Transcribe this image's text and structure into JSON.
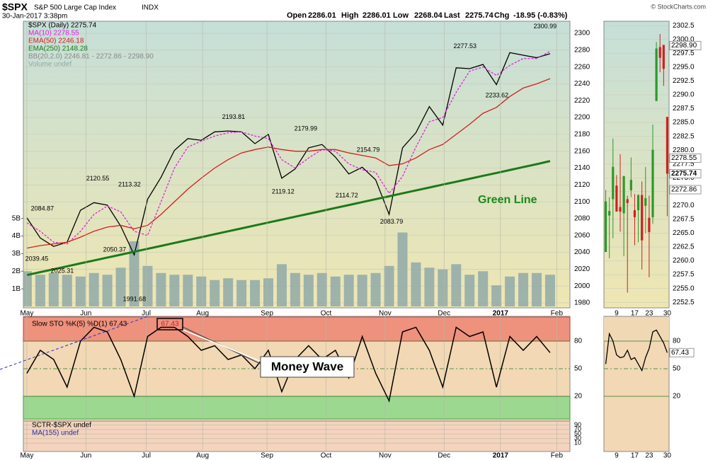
{
  "header": {
    "symbol": "$SPX",
    "name": "S&P 500 Large Cap Index",
    "exchange": "INDX",
    "timestamp": "30-Jan-2017 3:38pm",
    "quote": [
      {
        "label": "Open",
        "value": 2286.01
      },
      {
        "label": "High",
        "value": 2286.01
      },
      {
        "label": "Low",
        "value": 2268.04
      },
      {
        "label": "Last",
        "value": 2275.74
      }
    ],
    "change_label": "Chg",
    "change": "-18.95 (-0.83%)",
    "credit": "© StockCharts.com"
  },
  "chart_data": [
    {
      "type": "line",
      "xlim": [
        -0.26,
        40.48
      ],
      "xticks": [
        {
          "value": 0,
          "label": "May"
        },
        {
          "value": 4.4,
          "label": "Jun"
        },
        {
          "value": 8.9,
          "label": "Jul"
        },
        {
          "value": 13.1,
          "label": "Aug"
        },
        {
          "value": 17.9,
          "label": "Sep"
        },
        {
          "value": 22.3,
          "label": "Oct"
        },
        {
          "value": 26.7,
          "label": "Nov"
        },
        {
          "value": 31.1,
          "label": "Dec"
        },
        {
          "value": 35.3,
          "label": "2017"
        },
        {
          "value": 39.5,
          "label": "Feb"
        }
      ],
      "ylim": [
        1974.1,
        2314.3
      ],
      "yticks": [
        1980,
        2000,
        2020,
        2040,
        2060,
        2080,
        2100,
        2120,
        2140,
        2160,
        2180,
        2200,
        2220,
        2240,
        2260,
        2280,
        2300
      ],
      "y2lim": [
        -80000000,
        16200000000
      ],
      "y2ticks": [
        {
          "value": 1000000000,
          "label": "1B"
        },
        {
          "value": 2000000000,
          "label": "2B"
        },
        {
          "value": 3000000000,
          "label": "3B"
        },
        {
          "value": 4000000000,
          "label": "4B"
        },
        {
          "value": 5000000000,
          "label": "5B"
        }
      ],
      "grid": true,
      "series": [
        {
          "name": "$SPX (Daily) 2275.74",
          "color": "#000000",
          "values": [
            2081,
            2057,
            2047,
            2052,
            2090,
            2099,
            2096,
            2071,
            2037,
            2103,
            2129,
            2161,
            2175,
            2173,
            2183,
            2184,
            2183,
            2169,
            2180,
            2128,
            2139,
            2164,
            2168,
            2153,
            2133,
            2141,
            2126,
            2085,
            2164,
            2182,
            2213,
            2191,
            2259,
            2258,
            2263,
            2239,
            2277,
            2274,
            2271,
            2275.74
          ]
        },
        {
          "name": "MA(10) 2278.55",
          "color": "#e020e0",
          "dash": true,
          "values": [
            2075,
            2065,
            2052,
            2050,
            2065,
            2085,
            2095,
            2088,
            2065,
            2060,
            2100,
            2140,
            2165,
            2172,
            2178,
            2182,
            2183,
            2178,
            2175,
            2150,
            2140,
            2152,
            2162,
            2160,
            2145,
            2138,
            2135,
            2110,
            2130,
            2165,
            2195,
            2200,
            2230,
            2255,
            2260,
            2250,
            2262,
            2270,
            2270,
            2278.55
          ]
        },
        {
          "name": "EMA(50) 2246.18",
          "color": "#d02020",
          "values": [
            2045,
            2048,
            2050,
            2052,
            2058,
            2065,
            2070,
            2072,
            2068,
            2072,
            2085,
            2100,
            2115,
            2128,
            2140,
            2150,
            2158,
            2162,
            2165,
            2162,
            2160,
            2160,
            2162,
            2162,
            2158,
            2155,
            2152,
            2143,
            2145,
            2152,
            2162,
            2168,
            2180,
            2192,
            2205,
            2212,
            2225,
            2235,
            2240,
            2246.18
          ]
        },
        {
          "name": "EMA(250) 2148.28",
          "color": "#1a7a1a",
          "width": 3,
          "values": [
            2013,
            2016.5,
            2019.9,
            2023.4,
            2026.9,
            2030.3,
            2033.8,
            2037.2,
            2040.7,
            2044.2,
            2047.6,
            2051.1,
            2054.6,
            2058,
            2061.5,
            2065,
            2068.4,
            2071.9,
            2075.4,
            2078.8,
            2082.3,
            2085.7,
            2089.2,
            2092.7,
            2096.1,
            2099.6,
            2103.1,
            2106.5,
            2110,
            2113.5,
            2116.9,
            2120.4,
            2123.8,
            2127.3,
            2130.8,
            2134.2,
            2137.7,
            2141.2,
            2144.6,
            2148.28
          ]
        },
        {
          "name": "Volume undef",
          "color": "#8fa9a8",
          "style": "bar",
          "axis": "y2",
          "values": [
            2000000000,
            1800000000,
            1900000000,
            1800000000,
            1700000000,
            1900000000,
            1800000000,
            2200000000,
            3700000000,
            2300000000,
            1900000000,
            1800000000,
            1800000000,
            1700000000,
            1500000000,
            1600000000,
            1500000000,
            1500000000,
            1600000000,
            2400000000,
            1900000000,
            1800000000,
            1900000000,
            1700000000,
            1800000000,
            1800000000,
            1900000000,
            2300000000,
            4200000000,
            2500000000,
            2200000000,
            2100000000,
            2400000000,
            1800000000,
            2000000000,
            1200000000,
            1700000000,
            1900000000,
            1900000000,
            1800000000
          ]
        }
      ],
      "legend_extra": "BB(20,2.0) 2246.81 - 2272.86 - 2298.90",
      "annotations": [
        {
          "x": 1.16,
          "value": 2084.87
        },
        {
          "x": 0.74,
          "value": 2039.45
        },
        {
          "x": 2.64,
          "value": 2025.31
        },
        {
          "x": 5.28,
          "value": 2120.55
        },
        {
          "x": 6.54,
          "value": 2050.37
        },
        {
          "x": 7.65,
          "value": 2113.32
        },
        {
          "x": 8.02,
          "value": 1991.68
        },
        {
          "x": 15.41,
          "value": 2193.81
        },
        {
          "x": 20.79,
          "value": 2179.99
        },
        {
          "x": 19.1,
          "value": 2119.12
        },
        {
          "x": 25.44,
          "value": 2154.79
        },
        {
          "x": 23.85,
          "value": 2114.72
        },
        {
          "x": 27.18,
          "value": 2083.79
        },
        {
          "x": 32.66,
          "value": 2277.53
        },
        {
          "x": 35.04,
          "value": 2233.62
        },
        {
          "x": 38.63,
          "value": 2300.99
        }
      ],
      "trendline_label": "Green Line"
    },
    {
      "type": "line",
      "xlim": [
        -0.26,
        40.48
      ],
      "xticks": [
        {
          "value": 0,
          "label": "May"
        },
        {
          "value": 4.4,
          "label": "Jun"
        },
        {
          "value": 8.9,
          "label": "Jul"
        },
        {
          "value": 13.1,
          "label": "Aug"
        },
        {
          "value": 17.9,
          "label": "Sep"
        },
        {
          "value": 22.3,
          "label": "Oct"
        },
        {
          "value": 26.7,
          "label": "Nov"
        },
        {
          "value": 31.1,
          "label": "Dec"
        },
        {
          "value": 35.3,
          "label": "2017"
        },
        {
          "value": 39.5,
          "label": "Feb"
        }
      ],
      "ylim": [
        -6.9,
        106.9
      ],
      "yticks": [
        20,
        50,
        80
      ],
      "series": [
        {
          "name": "Slow STO %K(5) %D(1) 67.43",
          "color": "#000000",
          "values": [
            45,
            70,
            60,
            30,
            80,
            95,
            90,
            60,
            20,
            85,
            95,
            95,
            85,
            70,
            75,
            60,
            65,
            50,
            70,
            25,
            60,
            75,
            60,
            70,
            40,
            85,
            45,
            15,
            90,
            95,
            70,
            30,
            95,
            85,
            90,
            30,
            85,
            70,
            85,
            67.43
          ]
        }
      ],
      "last_label": {
        "value": 67.43,
        "label": "67.43"
      },
      "callout": "Money Wave"
    },
    {
      "type": "line",
      "xlim": [
        -0.26,
        40.48
      ],
      "xticks": [
        {
          "value": 0,
          "label": "May"
        },
        {
          "value": 4.4,
          "label": "Jun"
        },
        {
          "value": 8.9,
          "label": "Jul"
        },
        {
          "value": 13.1,
          "label": "Aug"
        },
        {
          "value": 17.9,
          "label": "Sep"
        },
        {
          "value": 22.3,
          "label": "Oct"
        },
        {
          "value": 26.7,
          "label": "Nov"
        },
        {
          "value": 31.1,
          "label": "Dec"
        },
        {
          "value": 35.3,
          "label": "2017"
        },
        {
          "value": 39.5,
          "label": "Feb"
        }
      ],
      "ylim": [
        -26.7,
        106.7
      ],
      "yticks": [
        10,
        30,
        50,
        70,
        90
      ],
      "legend": [
        "SCTR-$SPX undef",
        "MA(155) undef"
      ]
    },
    {
      "type": "candlestick",
      "categories": [
        null,
        null,
        null,
        "9",
        null,
        null,
        null,
        null,
        "17",
        null,
        null,
        null,
        "23",
        null,
        null,
        null,
        null,
        "30"
      ],
      "ylim": [
        2251.5,
        2303.3
      ],
      "yticks": [
        2252.5,
        {
          "value": 2255,
          "label": "2255.0"
        },
        2257.5,
        {
          "value": 2260,
          "label": "2260.0"
        },
        2262.5,
        {
          "value": 2265,
          "label": "2265.0"
        },
        2267.5,
        {
          "value": 2270,
          "label": "2270.0"
        },
        2272.5,
        {
          "value": 2275,
          "label": "2275.0"
        },
        2277.5,
        {
          "value": 2280,
          "label": "2280.0"
        },
        2282.5,
        {
          "value": 2285,
          "label": "2285.0"
        },
        2287.5,
        {
          "value": 2290,
          "label": "2290.0"
        },
        2292.5,
        {
          "value": 2295,
          "label": "2295.0"
        },
        2297.5,
        {
          "value": 2300,
          "label": "2300.0"
        },
        2302.5
      ],
      "open": [
        2261.6,
        2268.18,
        2271.14,
        2273.59,
        2269.72,
        2268.6,
        2271.14,
        2272.74,
        2269.14,
        2269.14,
        2271.9,
        2269.96,
        2267.78,
        2267.88,
        2288.88,
        2298.63,
        2299.02,
        2286.01
      ],
      "high": [
        2272.82,
        2271.5,
        2282.1,
        2275.49,
        2279.27,
        2275.32,
        2271.78,
        2278.68,
        2272.08,
        2272.01,
        2274.33,
        2276.96,
        2271.78,
        2284.63,
        2299.55,
        2300.99,
        2299.02,
        2286.01
      ],
      "low": [
        2261.6,
        2260.45,
        2264.06,
        2268.9,
        2265.27,
        2260.83,
        2254.25,
        2271.51,
        2262.81,
        2263.35,
        2258.41,
        2265.01,
        2257.02,
        2266.68,
        2288.88,
        2294.08,
        2291.62,
        2268.04
      ],
      "close": [
        2270.75,
        2269,
        2276.98,
        2268.9,
        2268.9,
        2275.32,
        2270.44,
        2274.64,
        2267.89,
        2271.89,
        2263.69,
        2271.31,
        2265.2,
        2280.07,
        2298.37,
        2296.68,
        2294.69,
        2275.74
      ],
      "up_color": "#2a9a2a",
      "down_color": "#d02020",
      "price_labels": [
        {
          "value": 2298.9,
          "label": "2298.90"
        },
        {
          "value": 2278.55,
          "label": "2278.55"
        },
        {
          "value": 2275.74,
          "label": "2275.74"
        },
        {
          "value": 2272.86,
          "label": "2272.86"
        }
      ]
    },
    {
      "type": "line",
      "categories": [
        null,
        null,
        null,
        "9",
        null,
        null,
        null,
        null,
        "17",
        null,
        null,
        null,
        "23",
        null,
        null,
        null,
        null,
        "30"
      ],
      "ylim": [
        -40,
        106.9
      ],
      "yticks": [
        20,
        50,
        80
      ],
      "series": [
        {
          "name": "Slow STO",
          "color": "#000000",
          "values": [
            55,
            88,
            80,
            65,
            62,
            63,
            70,
            60,
            62,
            55,
            48,
            62,
            72,
            90,
            92,
            85,
            78,
            67.43
          ]
        }
      ],
      "last_label": {
        "value": 67.43,
        "label": "67.43"
      }
    }
  ]
}
